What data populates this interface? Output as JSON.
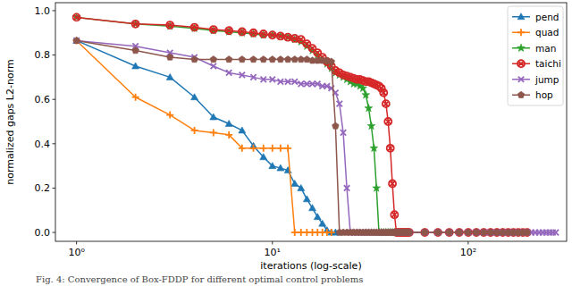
{
  "chart_data": {
    "type": "line",
    "caption": "Fig. 4: Convergence of Box-FDDP for different optimal control problems",
    "x_label": "iterations (log-scale)",
    "y_label": "normalized gaps L2-norm",
    "log": "x",
    "grid": false,
    "legend": "upper right",
    "xlim": [
      0.78,
      318
    ],
    "xticks": [
      {
        "value": 1,
        "label": "10⁰"
      },
      {
        "value": 10,
        "label": "10¹"
      },
      {
        "value": 100,
        "label": "10²"
      }
    ],
    "ylim": [
      -0.04,
      1.036
    ],
    "yticks": [
      {
        "value": 0,
        "label": "0.0"
      },
      {
        "value": 0.2,
        "label": "0.2"
      },
      {
        "value": 0.4,
        "label": "0.4"
      },
      {
        "value": 0.6,
        "label": "0.6"
      },
      {
        "value": 0.8,
        "label": "0.8"
      },
      {
        "value": 1,
        "label": "1.0"
      }
    ],
    "series": [
      {
        "name": "pend",
        "color": "#1f77b4",
        "marker": "triangle",
        "x": [
          1,
          2,
          3,
          4,
          5,
          6,
          7,
          8,
          9,
          10,
          11,
          12,
          13,
          14,
          15,
          16,
          17,
          18,
          19,
          20,
          21,
          22
        ],
        "values": [
          0.865,
          0.75,
          0.7,
          0.61,
          0.52,
          0.49,
          0.46,
          0.39,
          0.34,
          0.3,
          0.29,
          0.28,
          0.22,
          0.2,
          0.15,
          0.11,
          0.07,
          0.04,
          0.01,
          0,
          0,
          0
        ]
      },
      {
        "name": "quad",
        "color": "#ff7f0e",
        "marker": "plus",
        "x": [
          1,
          2,
          3,
          4,
          5,
          6,
          7,
          8,
          9,
          10,
          11,
          12,
          13,
          14,
          15,
          16,
          17,
          18,
          19,
          20
        ],
        "values": [
          0.865,
          0.61,
          0.53,
          0.46,
          0.45,
          0.44,
          0.38,
          0.38,
          0.38,
          0.38,
          0.38,
          0.38,
          0,
          0,
          0,
          0,
          0,
          0,
          0,
          0
        ]
      },
      {
        "name": "man",
        "color": "#2ca02c",
        "marker": "star",
        "x": [
          1,
          2,
          3,
          4,
          5,
          6,
          7,
          8,
          9,
          10,
          11,
          12,
          13,
          14,
          15,
          16,
          17,
          18,
          19,
          20,
          21,
          22,
          23,
          24,
          25,
          26,
          27,
          28,
          29,
          30,
          31,
          32,
          33,
          34,
          35,
          36,
          37,
          38,
          39,
          40,
          41,
          42,
          43,
          44,
          45,
          46,
          47,
          48,
          49,
          50,
          60,
          70,
          80,
          90,
          100,
          110,
          120,
          130,
          140,
          150
        ],
        "values": [
          0.97,
          0.94,
          0.93,
          0.92,
          0.91,
          0.905,
          0.9,
          0.895,
          0.89,
          0.89,
          0.885,
          0.88,
          0.87,
          0.86,
          0.84,
          0.82,
          0.8,
          0.78,
          0.76,
          0.74,
          0.72,
          0.71,
          0.7,
          0.69,
          0.68,
          0.67,
          0.67,
          0.66,
          0.65,
          0.62,
          0.56,
          0.48,
          0.38,
          0.2,
          0,
          0,
          0,
          0,
          0,
          0,
          0,
          0,
          0,
          0,
          0,
          0,
          0,
          0,
          0,
          0,
          0,
          0,
          0,
          0,
          0,
          0,
          0,
          0,
          0,
          0
        ]
      },
      {
        "name": "taichi",
        "color": "#d62728",
        "marker": "circle-x",
        "x": [
          1,
          2,
          3,
          4,
          5,
          6,
          7,
          8,
          9,
          10,
          11,
          12,
          13,
          14,
          15,
          16,
          17,
          18,
          19,
          20,
          21,
          22,
          23,
          24,
          25,
          26,
          27,
          28,
          29,
          30,
          31,
          32,
          33,
          34,
          35,
          36,
          37,
          38,
          39,
          40,
          41,
          42,
          43,
          44,
          45,
          46,
          47,
          48,
          49,
          50,
          60,
          70,
          80,
          90,
          100,
          110,
          120,
          130,
          140,
          150,
          160,
          170,
          180,
          190,
          200
        ],
        "values": [
          0.97,
          0.94,
          0.935,
          0.925,
          0.915,
          0.91,
          0.905,
          0.9,
          0.895,
          0.89,
          0.885,
          0.88,
          0.875,
          0.87,
          0.85,
          0.83,
          0.81,
          0.79,
          0.77,
          0.75,
          0.73,
          0.72,
          0.71,
          0.705,
          0.7,
          0.695,
          0.69,
          0.69,
          0.685,
          0.68,
          0.68,
          0.675,
          0.67,
          0.665,
          0.66,
          0.65,
          0.63,
          0.58,
          0.5,
          0.38,
          0.22,
          0.08,
          0,
          0,
          0,
          0,
          0,
          0,
          0,
          0,
          0,
          0,
          0,
          0,
          0,
          0,
          0,
          0,
          0,
          0,
          0,
          0,
          0,
          0,
          0
        ]
      },
      {
        "name": "jump",
        "color": "#9467bd",
        "marker": "x",
        "x": [
          1,
          2,
          3,
          4,
          5,
          6,
          7,
          8,
          9,
          10,
          11,
          12,
          13,
          14,
          15,
          16,
          17,
          18,
          19,
          20,
          21,
          22,
          23,
          24,
          25,
          26,
          27,
          28,
          29,
          30,
          31,
          32,
          33,
          34,
          35,
          36,
          37,
          38,
          39,
          40,
          41,
          42,
          43,
          44,
          45,
          46,
          47,
          48,
          49,
          50,
          60,
          70,
          80,
          90,
          100,
          110,
          120,
          130,
          140,
          150,
          160,
          170,
          180,
          190,
          200,
          210,
          220,
          230,
          240,
          250,
          260,
          270,
          280
        ],
        "values": [
          0.865,
          0.84,
          0.81,
          0.79,
          0.75,
          0.72,
          0.71,
          0.7,
          0.69,
          0.69,
          0.68,
          0.68,
          0.68,
          0.67,
          0.67,
          0.67,
          0.67,
          0.66,
          0.66,
          0.65,
          0.63,
          0.58,
          0.45,
          0.2,
          0,
          0,
          0,
          0,
          0,
          0,
          0,
          0,
          0,
          0,
          0,
          0,
          0,
          0,
          0,
          0,
          0,
          0,
          0,
          0,
          0,
          0,
          0,
          0,
          0,
          0,
          0,
          0,
          0,
          0,
          0,
          0,
          0,
          0,
          0,
          0,
          0,
          0,
          0,
          0,
          0,
          0,
          0,
          0,
          0,
          0,
          0,
          0,
          0
        ]
      },
      {
        "name": "hop",
        "color": "#8c564b",
        "marker": "pentagon",
        "x": [
          1,
          2,
          3,
          4,
          5,
          6,
          7,
          8,
          9,
          10,
          11,
          12,
          13,
          14,
          15,
          16,
          17,
          18,
          19,
          20,
          21,
          22,
          23,
          24,
          25,
          26,
          27,
          28,
          29,
          30,
          31,
          32,
          33,
          34,
          35,
          36,
          37,
          38,
          39,
          40,
          41,
          42,
          43,
          44,
          45,
          46,
          47,
          48,
          49,
          50,
          60,
          70,
          80,
          90,
          100,
          110,
          120,
          130,
          140,
          150,
          160,
          170,
          180,
          190,
          200
        ],
        "values": [
          0.865,
          0.82,
          0.79,
          0.78,
          0.78,
          0.78,
          0.78,
          0.78,
          0.78,
          0.78,
          0.78,
          0.78,
          0.78,
          0.78,
          0.78,
          0.775,
          0.775,
          0.775,
          0.775,
          0.77,
          0.48,
          0,
          0,
          0,
          0,
          0,
          0,
          0,
          0,
          0,
          0,
          0,
          0,
          0,
          0,
          0,
          0,
          0,
          0,
          0,
          0,
          0,
          0,
          0,
          0,
          0,
          0,
          0,
          0,
          0,
          0,
          0,
          0,
          0,
          0,
          0,
          0,
          0,
          0,
          0,
          0,
          0,
          0,
          0,
          0
        ]
      }
    ]
  }
}
